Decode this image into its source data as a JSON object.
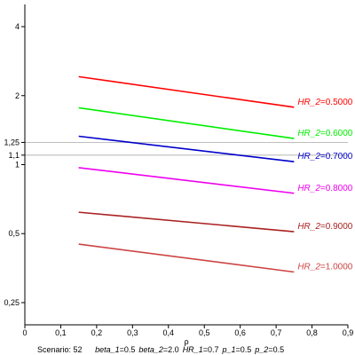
{
  "chart_data": {
    "type": "line",
    "xlabel": "ρ",
    "xlim": [
      0,
      0.9
    ],
    "ylim": [
      0.2,
      5.0
    ],
    "y_scale": "log",
    "x_ticks": [
      {
        "value": 0,
        "label": "0"
      },
      {
        "value": 0.1,
        "label": "0,1"
      },
      {
        "value": 0.2,
        "label": "0,2"
      },
      {
        "value": 0.3,
        "label": "0,3"
      },
      {
        "value": 0.4,
        "label": "0,4"
      },
      {
        "value": 0.5,
        "label": "0,5"
      },
      {
        "value": 0.6,
        "label": "0,6"
      },
      {
        "value": 0.7,
        "label": "0,7"
      },
      {
        "value": 0.8,
        "label": "0,8"
      },
      {
        "value": 0.9,
        "label": "0,9"
      }
    ],
    "y_ticks": [
      {
        "value": 0.25,
        "label": "0,25"
      },
      {
        "value": 0.5,
        "label": "0,5"
      },
      {
        "value": 1,
        "label": "1"
      },
      {
        "value": 1.1,
        "label": "1,1"
      },
      {
        "value": 1.25,
        "label": "1,25"
      },
      {
        "value": 2,
        "label": "2"
      },
      {
        "value": 4,
        "label": "4"
      }
    ],
    "reference_lines": [
      1.1,
      1.25
    ],
    "series": [
      {
        "label_name": "HR_2",
        "label_value": "0.5000",
        "color": "#ff0000",
        "x": [
          0.15,
          0.75
        ],
        "y": [
          2.42,
          1.78
        ]
      },
      {
        "label_name": "HR_2",
        "label_value": "0.6000",
        "color": "#00ee00",
        "x": [
          0.15,
          0.75
        ],
        "y": [
          1.77,
          1.3
        ]
      },
      {
        "label_name": "HR_2",
        "label_value": "0.7000",
        "color": "#0000cc",
        "x": [
          0.15,
          0.75
        ],
        "y": [
          1.33,
          1.03
        ]
      },
      {
        "label_name": "HR_2",
        "label_value": "0.8000",
        "color": "#ee00ee",
        "x": [
          0.15,
          0.75
        ],
        "y": [
          0.97,
          0.75
        ]
      },
      {
        "label_name": "HR_2",
        "label_value": "0.9000",
        "color": "#aa2222",
        "x": [
          0.15,
          0.75
        ],
        "y": [
          0.62,
          0.51
        ]
      },
      {
        "label_name": "HR_2",
        "label_value": "1.0000",
        "color": "#cc4444",
        "x": [
          0.15,
          0.75
        ],
        "y": [
          0.45,
          0.34
        ]
      }
    ]
  },
  "footer": {
    "scenario_label": "Scenario: 52",
    "params": [
      {
        "name": "beta_1",
        "value": "0.5"
      },
      {
        "name": "beta_2",
        "value": "2.0"
      },
      {
        "name": "HR_1",
        "value": "0.7"
      },
      {
        "name": "p_1",
        "value": "0.5"
      },
      {
        "name": "p_2",
        "value": "0.5"
      }
    ]
  }
}
